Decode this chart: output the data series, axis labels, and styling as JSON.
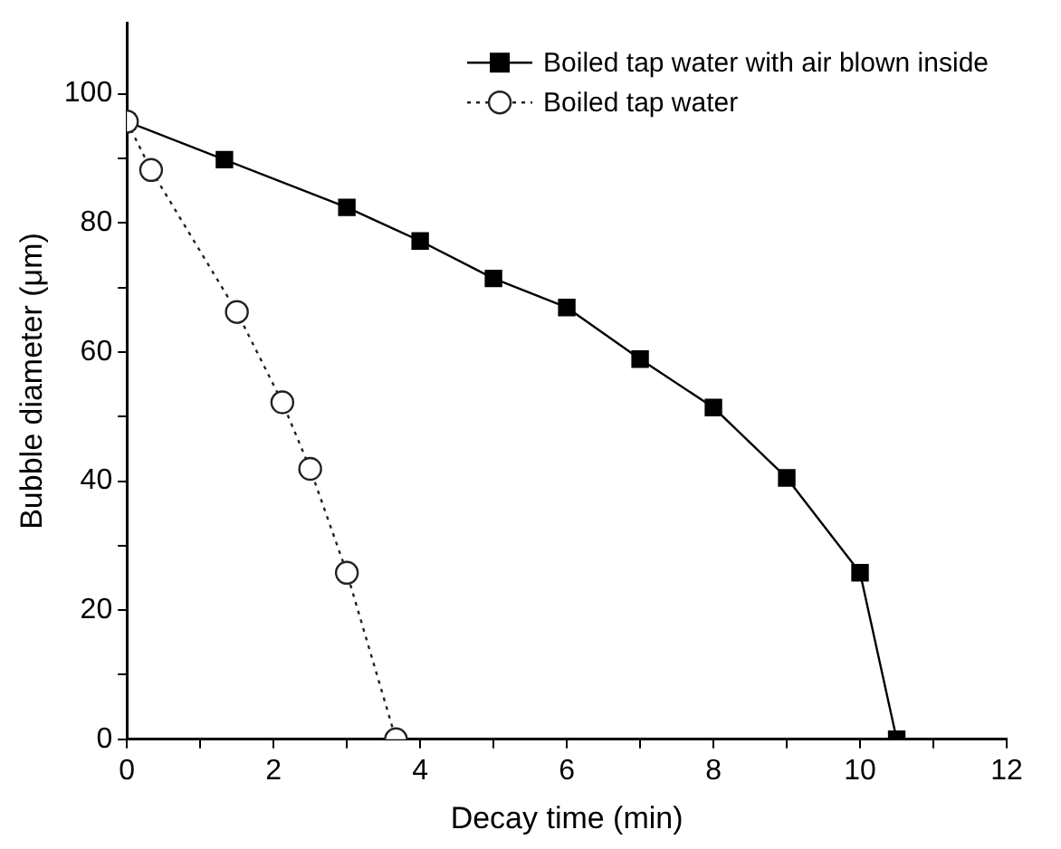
{
  "chart_data": {
    "type": "line",
    "xlabel": "Decay time (min)",
    "ylabel": "Bubble diameter (μm)",
    "xlim": [
      0,
      12
    ],
    "ylim": [
      0,
      111
    ],
    "xticks": [
      0,
      {
        "value": 1,
        "label": null
      },
      2,
      {
        "value": 3,
        "label": null
      },
      4,
      {
        "value": 5,
        "label": null
      },
      6,
      {
        "value": 7,
        "label": null
      },
      8,
      {
        "value": 9,
        "label": null
      },
      10,
      {
        "value": 11,
        "label": null
      },
      12
    ],
    "yticks": [
      0,
      {
        "value": 10,
        "label": null
      },
      20,
      {
        "value": 30,
        "label": null
      },
      40,
      {
        "value": 50,
        "label": null
      },
      60,
      {
        "value": 70,
        "label": null
      },
      80,
      {
        "value": 90,
        "label": null
      },
      100
    ],
    "grid": false,
    "legend": "top right",
    "series": [
      {
        "name": "Boiled tap water with air blown inside",
        "color": "#000000",
        "marker": "square",
        "line_style": "solid",
        "x": [
          0,
          1.33,
          3,
          4,
          5,
          6,
          7,
          8,
          9,
          10,
          10.5
        ],
        "values": [
          95.7,
          89.8,
          82.4,
          77.2,
          71.4,
          66.9,
          58.9,
          51.4,
          40.5,
          25.8,
          0
        ]
      },
      {
        "name": "Boiled tap water",
        "color": "#222222",
        "marker": "circle",
        "line_style": "dotted",
        "x": [
          0,
          0.33,
          1.5,
          2.12,
          2.5,
          3,
          3.67
        ],
        "values": [
          95.7,
          88.2,
          66.2,
          52.2,
          41.9,
          25.8,
          0
        ]
      }
    ]
  }
}
